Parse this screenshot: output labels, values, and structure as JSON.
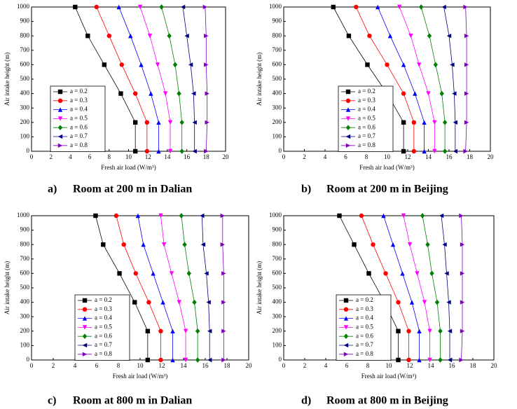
{
  "chart_data": [
    {
      "type": "line",
      "label": "a)",
      "title": "Room at 200 m in Dalian",
      "xlabel": "Fresh air load (W/m³)",
      "ylabel": "Air intake height (m)",
      "xlim": [
        0,
        20
      ],
      "ylim": [
        0,
        1000
      ],
      "xticks": [
        0,
        2,
        4,
        6,
        8,
        10,
        12,
        14,
        16,
        18,
        20
      ],
      "yticks": [
        0,
        100,
        200,
        300,
        400,
        500,
        600,
        700,
        800,
        900,
        1000
      ],
      "series": [
        {
          "name": "a = 0.2",
          "color": "#000000",
          "x": [
            4.5,
            5.8,
            7.5,
            9.2,
            10.7,
            10.7
          ],
          "values": [
            1000,
            800,
            600,
            400,
            200,
            0
          ]
        },
        {
          "name": "a = 0.3",
          "color": "#ff0000",
          "x": [
            6.7,
            8.0,
            9.3,
            10.7,
            11.9,
            11.9
          ],
          "values": [
            1000,
            800,
            600,
            400,
            200,
            0
          ]
        },
        {
          "name": "a = 0.4",
          "color": "#0000ff",
          "x": [
            9.0,
            10.2,
            11.3,
            12.3,
            13.1,
            13.1
          ],
          "values": [
            1000,
            800,
            600,
            400,
            200,
            0
          ]
        },
        {
          "name": "a = 0.5",
          "color": "#ff00ff",
          "x": [
            11.2,
            12.2,
            13.0,
            13.8,
            14.3,
            14.3
          ],
          "values": [
            1000,
            800,
            600,
            400,
            200,
            0
          ]
        },
        {
          "name": "a = 0.6",
          "color": "#008000",
          "x": [
            13.4,
            14.2,
            14.8,
            15.2,
            15.5,
            15.5
          ],
          "values": [
            1000,
            800,
            600,
            400,
            200,
            0
          ]
        },
        {
          "name": "a = 0.7",
          "color": "#000080",
          "x": [
            15.6,
            16.0,
            16.4,
            16.7,
            16.8,
            16.8
          ],
          "values": [
            1000,
            800,
            600,
            400,
            200,
            0
          ]
        },
        {
          "name": "a = 0.8",
          "color": "#8000c0",
          "x": [
            17.9,
            18.0,
            18.0,
            18.1,
            18.1,
            18.0
          ],
          "values": [
            1000,
            800,
            600,
            400,
            200,
            0
          ]
        }
      ]
    },
    {
      "type": "line",
      "label": "b)",
      "title": "Room at 200 m in Beijing",
      "xlabel": "Fresh air load (W/m³)",
      "ylabel": "Air intake height (m)",
      "xlim": [
        0,
        20
      ],
      "ylim": [
        0,
        1000
      ],
      "xticks": [
        0,
        2,
        4,
        6,
        8,
        10,
        12,
        14,
        16,
        18,
        20
      ],
      "yticks": [
        0,
        100,
        200,
        300,
        400,
        500,
        600,
        700,
        800,
        900,
        1000
      ],
      "series": [
        {
          "name": "a = 0.2",
          "color": "#000000",
          "x": [
            4.8,
            6.3,
            8.1,
            10.0,
            11.6,
            11.6
          ],
          "values": [
            1000,
            800,
            600,
            400,
            200,
            0
          ]
        },
        {
          "name": "a = 0.3",
          "color": "#ff0000",
          "x": [
            7.0,
            8.3,
            10.0,
            11.6,
            12.6,
            12.6
          ],
          "values": [
            1000,
            800,
            600,
            400,
            200,
            0
          ]
        },
        {
          "name": "a = 0.4",
          "color": "#0000ff",
          "x": [
            9.1,
            10.3,
            11.6,
            12.7,
            13.6,
            13.6
          ],
          "values": [
            1000,
            800,
            600,
            400,
            200,
            0
          ]
        },
        {
          "name": "a = 0.5",
          "color": "#ff00ff",
          "x": [
            11.2,
            12.3,
            13.1,
            14.0,
            14.6,
            14.6
          ],
          "values": [
            1000,
            800,
            600,
            400,
            200,
            0
          ]
        },
        {
          "name": "a = 0.6",
          "color": "#008000",
          "x": [
            13.3,
            14.1,
            14.7,
            15.3,
            15.6,
            15.6
          ],
          "values": [
            1000,
            800,
            600,
            400,
            200,
            0
          ]
        },
        {
          "name": "a = 0.7",
          "color": "#000080",
          "x": [
            15.5,
            16.0,
            16.3,
            16.5,
            16.6,
            16.6
          ],
          "values": [
            1000,
            800,
            600,
            400,
            200,
            0
          ]
        },
        {
          "name": "a = 0.8",
          "color": "#8000c0",
          "x": [
            17.6,
            17.7,
            17.7,
            17.7,
            17.7,
            17.6
          ],
          "values": [
            1000,
            800,
            600,
            400,
            200,
            0
          ]
        }
      ]
    },
    {
      "type": "line",
      "label": "c)",
      "title": "Room at 800 m in Dalian",
      "xlabel": "Fresh air load (W/m³)",
      "ylabel": "Air intake height (m)",
      "xlim": [
        0,
        20
      ],
      "ylim": [
        0,
        1000
      ],
      "xticks": [
        0,
        2,
        4,
        6,
        8,
        10,
        12,
        14,
        16,
        18,
        20
      ],
      "yticks": [
        0,
        100,
        200,
        300,
        400,
        500,
        600,
        700,
        800,
        900,
        1000
      ],
      "series": [
        {
          "name": "a = 0.2",
          "color": "#000000",
          "x": [
            5.9,
            6.6,
            8.1,
            9.5,
            10.7,
            10.7
          ],
          "values": [
            1000,
            800,
            600,
            400,
            200,
            0
          ]
        },
        {
          "name": "a = 0.3",
          "color": "#ff0000",
          "x": [
            7.8,
            8.5,
            9.6,
            10.8,
            11.9,
            11.9
          ],
          "values": [
            1000,
            800,
            600,
            400,
            200,
            0
          ]
        },
        {
          "name": "a = 0.4",
          "color": "#0000ff",
          "x": [
            9.8,
            10.3,
            11.2,
            12.1,
            13.0,
            13.0
          ],
          "values": [
            1000,
            800,
            600,
            400,
            200,
            0
          ]
        },
        {
          "name": "a = 0.5",
          "color": "#ff00ff",
          "x": [
            11.9,
            12.2,
            12.9,
            13.6,
            14.2,
            14.2
          ],
          "values": [
            1000,
            800,
            600,
            400,
            200,
            0
          ]
        },
        {
          "name": "a = 0.6",
          "color": "#008000",
          "x": [
            13.8,
            14.1,
            14.5,
            15.0,
            15.3,
            15.3
          ],
          "values": [
            1000,
            800,
            600,
            400,
            200,
            0
          ]
        },
        {
          "name": "a = 0.7",
          "color": "#000080",
          "x": [
            15.7,
            15.8,
            16.1,
            16.3,
            16.4,
            16.4
          ],
          "values": [
            1000,
            800,
            600,
            400,
            200,
            0
          ]
        },
        {
          "name": "a = 0.8",
          "color": "#8000c0",
          "x": [
            17.6,
            17.6,
            17.7,
            17.7,
            17.7,
            17.7
          ],
          "values": [
            1000,
            800,
            600,
            400,
            200,
            0
          ]
        }
      ]
    },
    {
      "type": "line",
      "label": "d)",
      "title": "Room at 800 m in Beijing",
      "xlabel": "Fresh air load (W/m³)",
      "ylabel": "Air intake height (m)",
      "xlim": [
        0,
        20
      ],
      "ylim": [
        0,
        1000
      ],
      "xticks": [
        0,
        2,
        4,
        6,
        8,
        10,
        12,
        14,
        16,
        18,
        20
      ],
      "yticks": [
        0,
        100,
        200,
        300,
        400,
        500,
        600,
        700,
        800,
        900,
        1000
      ],
      "series": [
        {
          "name": "a = 0.2",
          "color": "#000000",
          "x": [
            5.3,
            6.7,
            8.1,
            9.6,
            10.9,
            10.9
          ],
          "values": [
            1000,
            800,
            600,
            400,
            200,
            0
          ]
        },
        {
          "name": "a = 0.3",
          "color": "#ff0000",
          "x": [
            7.4,
            8.5,
            9.7,
            10.9,
            11.9,
            11.9
          ],
          "values": [
            1000,
            800,
            600,
            400,
            200,
            0
          ]
        },
        {
          "name": "a = 0.4",
          "color": "#0000ff",
          "x": [
            9.5,
            10.4,
            11.3,
            12.2,
            12.9,
            12.9
          ],
          "values": [
            1000,
            800,
            600,
            400,
            200,
            0
          ]
        },
        {
          "name": "a = 0.5",
          "color": "#ff00ff",
          "x": [
            11.4,
            12.0,
            12.7,
            13.4,
            13.9,
            13.9
          ],
          "values": [
            1000,
            800,
            600,
            400,
            200,
            0
          ]
        },
        {
          "name": "a = 0.6",
          "color": "#008000",
          "x": [
            13.2,
            13.7,
            14.1,
            14.6,
            14.9,
            14.9
          ],
          "values": [
            1000,
            800,
            600,
            400,
            200,
            0
          ]
        },
        {
          "name": "a = 0.7",
          "color": "#000080",
          "x": [
            15.0,
            15.3,
            15.5,
            15.7,
            15.8,
            15.8
          ],
          "values": [
            1000,
            800,
            600,
            400,
            200,
            0
          ]
        },
        {
          "name": "a = 0.8",
          "color": "#8000c0",
          "x": [
            16.9,
            17.0,
            17.0,
            17.0,
            17.0,
            16.9
          ],
          "values": [
            1000,
            800,
            600,
            400,
            200,
            0
          ]
        }
      ]
    }
  ]
}
